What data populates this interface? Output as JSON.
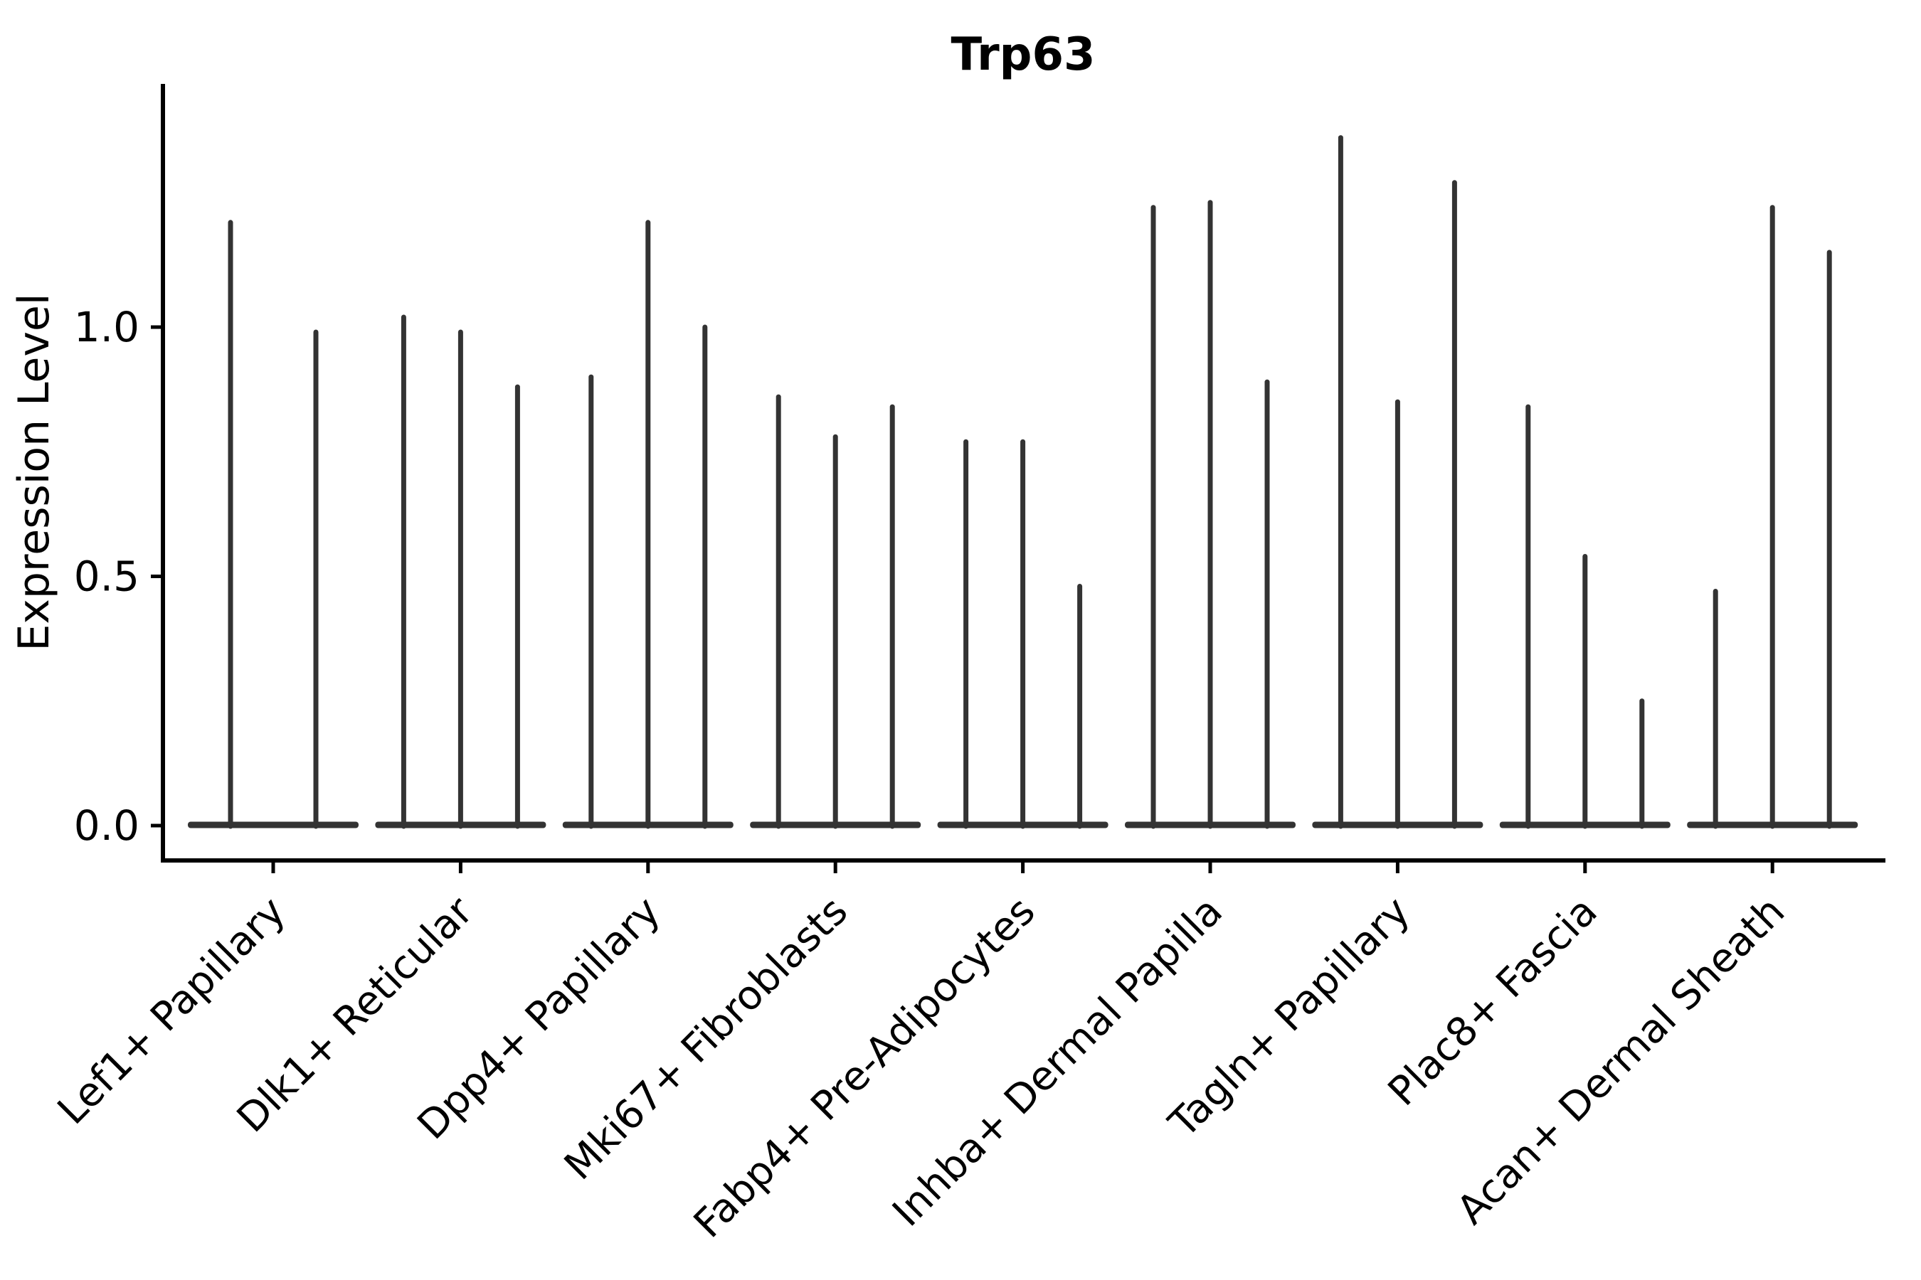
{
  "figure": {
    "background": "#ffffff"
  },
  "chart_data": {
    "type": "violin",
    "title": "Trp63",
    "xlabel": "",
    "ylabel": "Expression Level",
    "legend": "none",
    "grid": false,
    "ylim": [
      -0.07,
      1.49
    ],
    "baseline_value": 0.0,
    "yticks": [
      {
        "value": 0.0,
        "label": "0.0"
      },
      {
        "value": 0.5,
        "label": "0.5"
      },
      {
        "value": 1.0,
        "label": "1.0"
      }
    ],
    "violin_style": "thin delta spikes with flat base at zero expression",
    "colors": {
      "violin": "#333333",
      "axis": "#000000",
      "text": "#000000"
    },
    "categories": [
      "Lef1+ Papillary",
      "Dlk1+ Reticular",
      "Dpp4+ Papillary",
      "Mki67+ Fibroblasts",
      "Fabp4+ Pre-Adipocytes",
      "Inhba+ Dermal Papilla",
      "Tagln+ Papillary",
      "Plac8+ Fascia",
      "Acan+ Dermal Sheath"
    ],
    "groups": [
      {
        "label": "Lef1+ Papillary",
        "violin_maxima": [
          1.21,
          0.99
        ]
      },
      {
        "label": "Dlk1+ Reticular",
        "violin_maxima": [
          1.02,
          0.99,
          0.88
        ]
      },
      {
        "label": "Dpp4+ Papillary",
        "violin_maxima": [
          0.9,
          1.21,
          1.0
        ]
      },
      {
        "label": "Mki67+ Fibroblasts",
        "violin_maxima": [
          0.86,
          0.78,
          0.84
        ]
      },
      {
        "label": "Fabp4+ Pre-Adipocytes",
        "violin_maxima": [
          0.77,
          0.77,
          0.48
        ]
      },
      {
        "label": "Inhba+ Dermal Papilla",
        "violin_maxima": [
          1.24,
          1.25,
          0.89
        ]
      },
      {
        "label": "Tagln+ Papillary",
        "violin_maxima": [
          1.38,
          0.85,
          1.29
        ]
      },
      {
        "label": "Plac8+ Fascia",
        "violin_maxima": [
          0.84,
          0.54,
          0.25
        ]
      },
      {
        "label": "Acan+ Dermal Sheath",
        "violin_maxima": [
          0.47,
          1.24,
          1.15
        ]
      }
    ]
  }
}
